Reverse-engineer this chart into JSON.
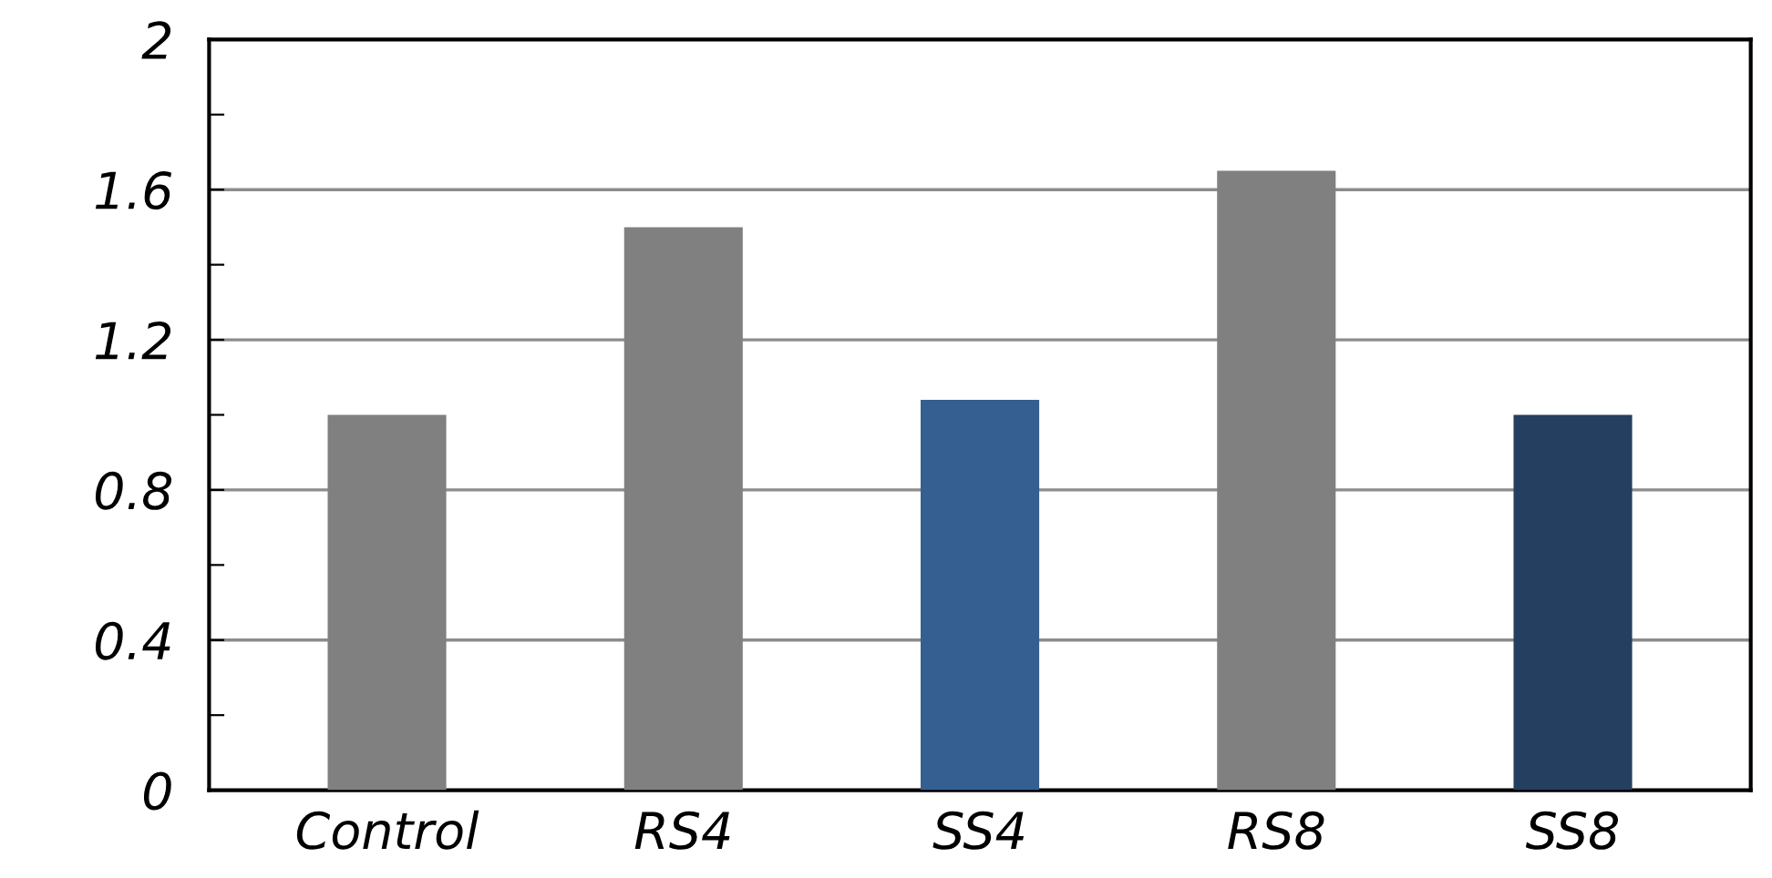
{
  "chart_data": {
    "type": "bar",
    "categories": [
      "Control",
      "RS4",
      "SS4",
      "RS8",
      "SS8"
    ],
    "values": [
      1.0,
      1.5,
      1.04,
      1.65,
      1.0
    ],
    "colors": [
      "#808080",
      "#808080",
      "#365f91",
      "#808080",
      "#243f60"
    ],
    "ylim": [
      0,
      2
    ],
    "yticks": [
      0,
      {
        "value": 0.2,
        "label": null
      },
      0.4,
      {
        "value": 0.6,
        "label": null
      },
      0.8,
      {
        "value": 1.0,
        "label": null
      },
      1.2,
      {
        "value": 1.4,
        "label": null
      },
      1.6,
      {
        "value": 1.8,
        "label": null
      },
      2
    ],
    "grid": "y"
  }
}
